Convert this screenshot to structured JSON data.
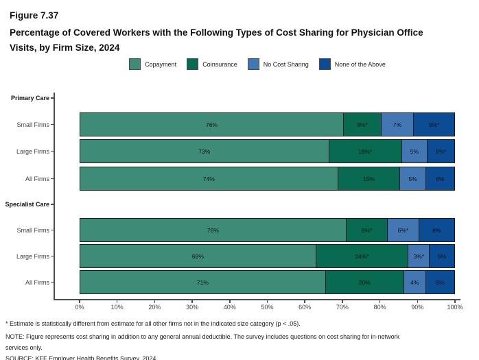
{
  "figure_label": "Figure 7.37",
  "title": "Percentage of Covered Workers with the Following Types of Cost Sharing for Physician Office Visits, by Firm Size, 2024",
  "footnotes": [
    "* Estimate is statistically different from estimate for all other firms not in the indicated size category (p < .05).",
    "NOTE: Figure represents cost sharing in addition to any general annual deductible. The survey includes questions on cost sharing for in-network",
    "services only.",
    "SOURCE: KFF Employer Health Benefits Survey, 2024"
  ],
  "chart_data": {
    "type": "bar",
    "stacked": true,
    "orientation": "horizontal",
    "title": "Percentage of Covered Workers with the Following Types of Cost Sharing for Physician Office Visits, by Firm Size, 2024",
    "xlabel": "",
    "ylabel": "",
    "xlim": [
      0,
      100
    ],
    "x_ticks": [
      "0%",
      "10%",
      "20%",
      "30%",
      "40%",
      "50%",
      "60%",
      "70%",
      "80%",
      "90%",
      "100%"
    ],
    "grid": false,
    "legend_position": "top",
    "legend": [
      {
        "name": "Copayment",
        "color": "#3e8b78"
      },
      {
        "name": "Coinsurance",
        "color": "#086a51"
      },
      {
        "name": "No Cost Sharing",
        "color": "#4277b3"
      },
      {
        "name": "None of the Above",
        "color": "#0b4c94"
      }
    ],
    "groups": [
      {
        "label": "Primary Care",
        "rows": [
          {
            "label": "Small Firms",
            "values": [
              76,
              8,
              7,
              9
            ],
            "value_labels": [
              "76%",
              "8%*",
              "7%",
              "9%*"
            ]
          },
          {
            "label": "Large Firms",
            "values": [
              73,
              18,
              5,
              5
            ],
            "value_labels": [
              "73%",
              "18%*",
              "5%",
              "5%*"
            ]
          },
          {
            "label": "All Firms",
            "values": [
              74,
              15,
              5,
              6
            ],
            "value_labels": [
              "74%",
              "15%",
              "5%",
              "6%"
            ]
          }
        ]
      },
      {
        "label": "Specialist Care",
        "rows": [
          {
            "label": "Small Firms",
            "values": [
              76,
              9,
              6,
              8
            ],
            "value_labels": [
              "76%",
              "9%*",
              "6%*",
              "8%"
            ]
          },
          {
            "label": "Large Firms",
            "values": [
              69,
              24,
              3,
              5
            ],
            "value_labels": [
              "69%",
              "24%*",
              "3%*",
              "5%"
            ]
          },
          {
            "label": "All Firms",
            "values": [
              71,
              20,
              4,
              6
            ],
            "value_labels": [
              "71%",
              "20%",
              "4%",
              "6%"
            ]
          }
        ]
      }
    ]
  }
}
